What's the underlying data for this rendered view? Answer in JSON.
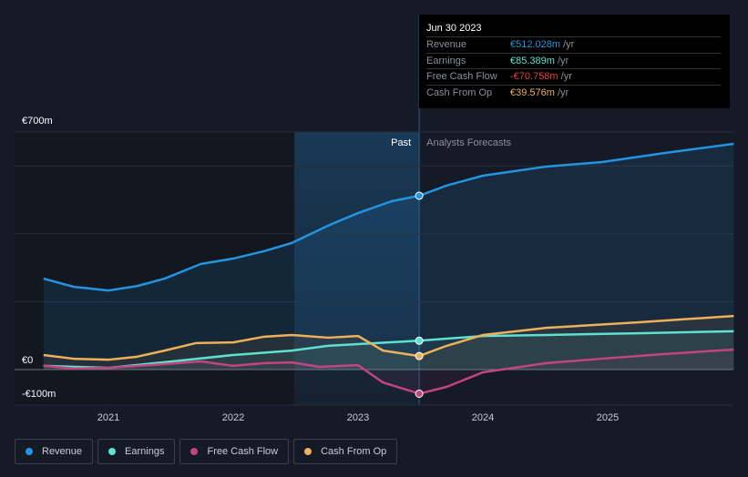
{
  "tooltip": {
    "date": "Jun 30 2023",
    "rows": [
      {
        "label": "Revenue",
        "value": "€512.028m",
        "unit": "/yr",
        "color": "#2394df"
      },
      {
        "label": "Earnings",
        "value": "€85.389m",
        "unit": "/yr",
        "color": "#5ee1cf"
      },
      {
        "label": "Free Cash Flow",
        "value": "-€70.758m",
        "unit": "/yr",
        "color": "#e64141"
      },
      {
        "label": "Cash From Op",
        "value": "€39.576m",
        "unit": "/yr",
        "color": "#eeb058"
      }
    ]
  },
  "chart_data": {
    "type": "line",
    "y_ticks": [
      {
        "value": 700,
        "label": "€700m"
      },
      {
        "value": 0,
        "label": "€0"
      },
      {
        "value": -100,
        "label": "-€100m"
      }
    ],
    "x_ticks": [
      {
        "value": 2021,
        "label": "2021"
      },
      {
        "value": 2022,
        "label": "2022"
      },
      {
        "value": 2023,
        "label": "2023"
      },
      {
        "value": 2024,
        "label": "2024"
      },
      {
        "value": 2025,
        "label": "2025"
      }
    ],
    "xlim": [
      2020.2,
      2026.01
    ],
    "ylim": [
      -110,
      700
    ],
    "past_label": "Past",
    "forecast_label": "Analysts Forecasts",
    "divider_x": 2023.49,
    "past_start": 2022.49,
    "series": [
      {
        "name": "Revenue",
        "color": "#2394df",
        "x": [
          2020.48,
          2020.72,
          2021,
          2021.23,
          2021.45,
          2021.74,
          2022,
          2022.25,
          2022.47,
          2022.76,
          2023,
          2023.27,
          2023.49,
          2023.71,
          2024,
          2024.51,
          2024.95,
          2025.46,
          2026.01
        ],
        "values": [
          268,
          244,
          233,
          246,
          268,
          311,
          327,
          349,
          373,
          424,
          461,
          496,
          512,
          542,
          571,
          598,
          611,
          638,
          665
        ]
      },
      {
        "name": "Earnings",
        "color": "#5ee1cf",
        "x": [
          2020.48,
          2021,
          2021.59,
          2022,
          2022.47,
          2022.76,
          2023,
          2023.49,
          2024,
          2024.51,
          2025.24,
          2026.01
        ],
        "values": [
          11,
          5,
          27,
          43,
          56,
          70,
          75,
          85,
          99,
          102,
          107,
          113
        ]
      },
      {
        "name": "Free Cash Flow",
        "color": "#c2457f",
        "x": [
          2020.48,
          2020.72,
          2021,
          2021.45,
          2021.74,
          2022,
          2022.25,
          2022.47,
          2022.69,
          2023,
          2023.2,
          2023.49,
          2023.71,
          2024,
          2024.51,
          2024.95,
          2025.46,
          2026.01
        ],
        "values": [
          11,
          3,
          5,
          16,
          24,
          11,
          19,
          21,
          8,
          13,
          -38,
          -71,
          -51,
          -8,
          19,
          32,
          46,
          59
        ]
      },
      {
        "name": "Cash From Op",
        "color": "#eeb058",
        "x": [
          2020.48,
          2020.72,
          2021,
          2021.23,
          2021.45,
          2021.7,
          2022,
          2022.25,
          2022.47,
          2022.76,
          2023,
          2023.2,
          2023.49,
          2023.71,
          2024,
          2024.51,
          2025.24,
          2026.01
        ],
        "values": [
          43,
          32,
          29,
          38,
          56,
          78,
          80,
          97,
          102,
          94,
          99,
          56,
          40,
          70,
          102,
          123,
          139,
          158
        ]
      }
    ]
  },
  "legend": [
    "Revenue",
    "Earnings",
    "Free Cash Flow",
    "Cash From Op"
  ]
}
